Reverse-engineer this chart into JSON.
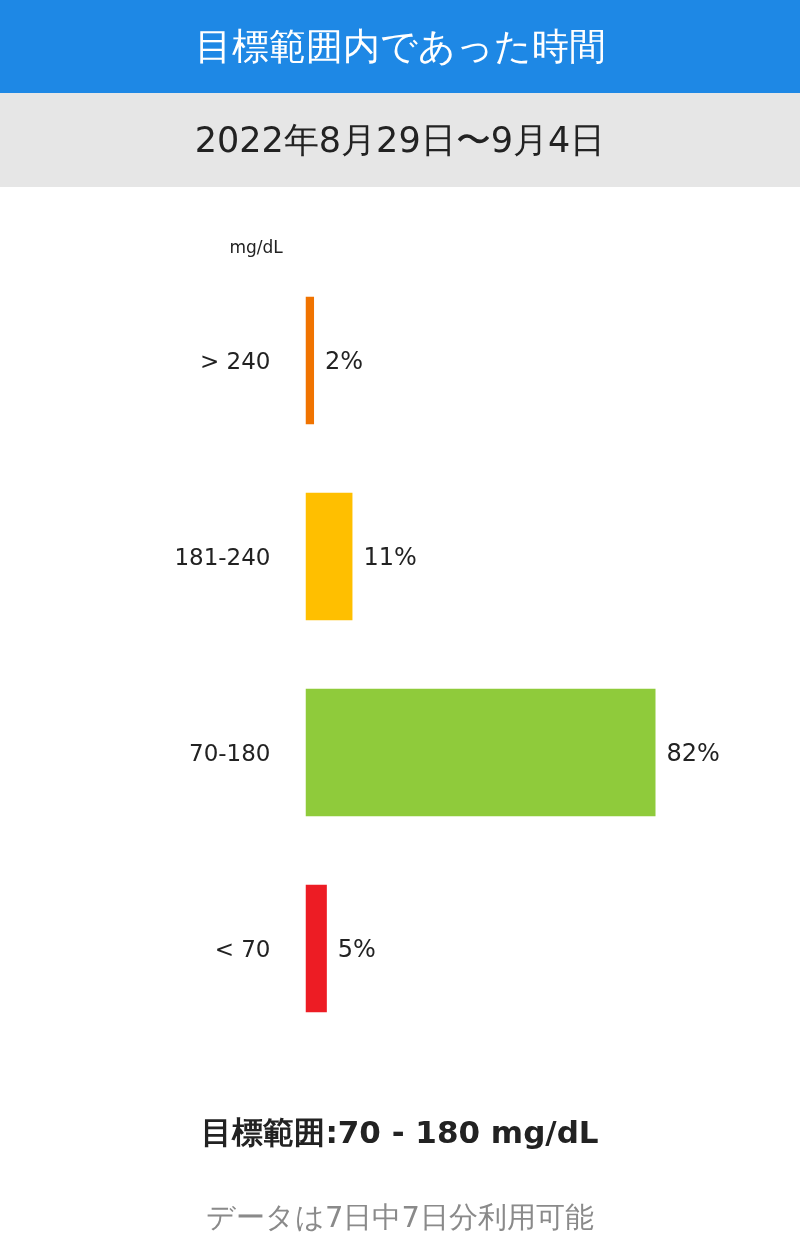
{
  "chart_data": {
    "type": "bar",
    "orientation": "horizontal",
    "title": "目標範囲内であった時間",
    "subtitle": "2022年8月29日〜9月4日",
    "ylabel": "mg/dL",
    "categories": [
      "> 240",
      "181-240",
      "70-180",
      "< 70"
    ],
    "values": [
      2,
      11,
      82,
      5
    ],
    "colors": [
      "#f07300",
      "#ffbf00",
      "#8fcb3b",
      "#ed1c24"
    ],
    "value_labels": [
      "2%",
      "11%",
      "82%",
      "5%"
    ],
    "tick_labels": "y",
    "grid": false,
    "annotations": [
      "目標範囲:70 - 180 mg/dL",
      "データは7日中7日分利用可能"
    ]
  }
}
